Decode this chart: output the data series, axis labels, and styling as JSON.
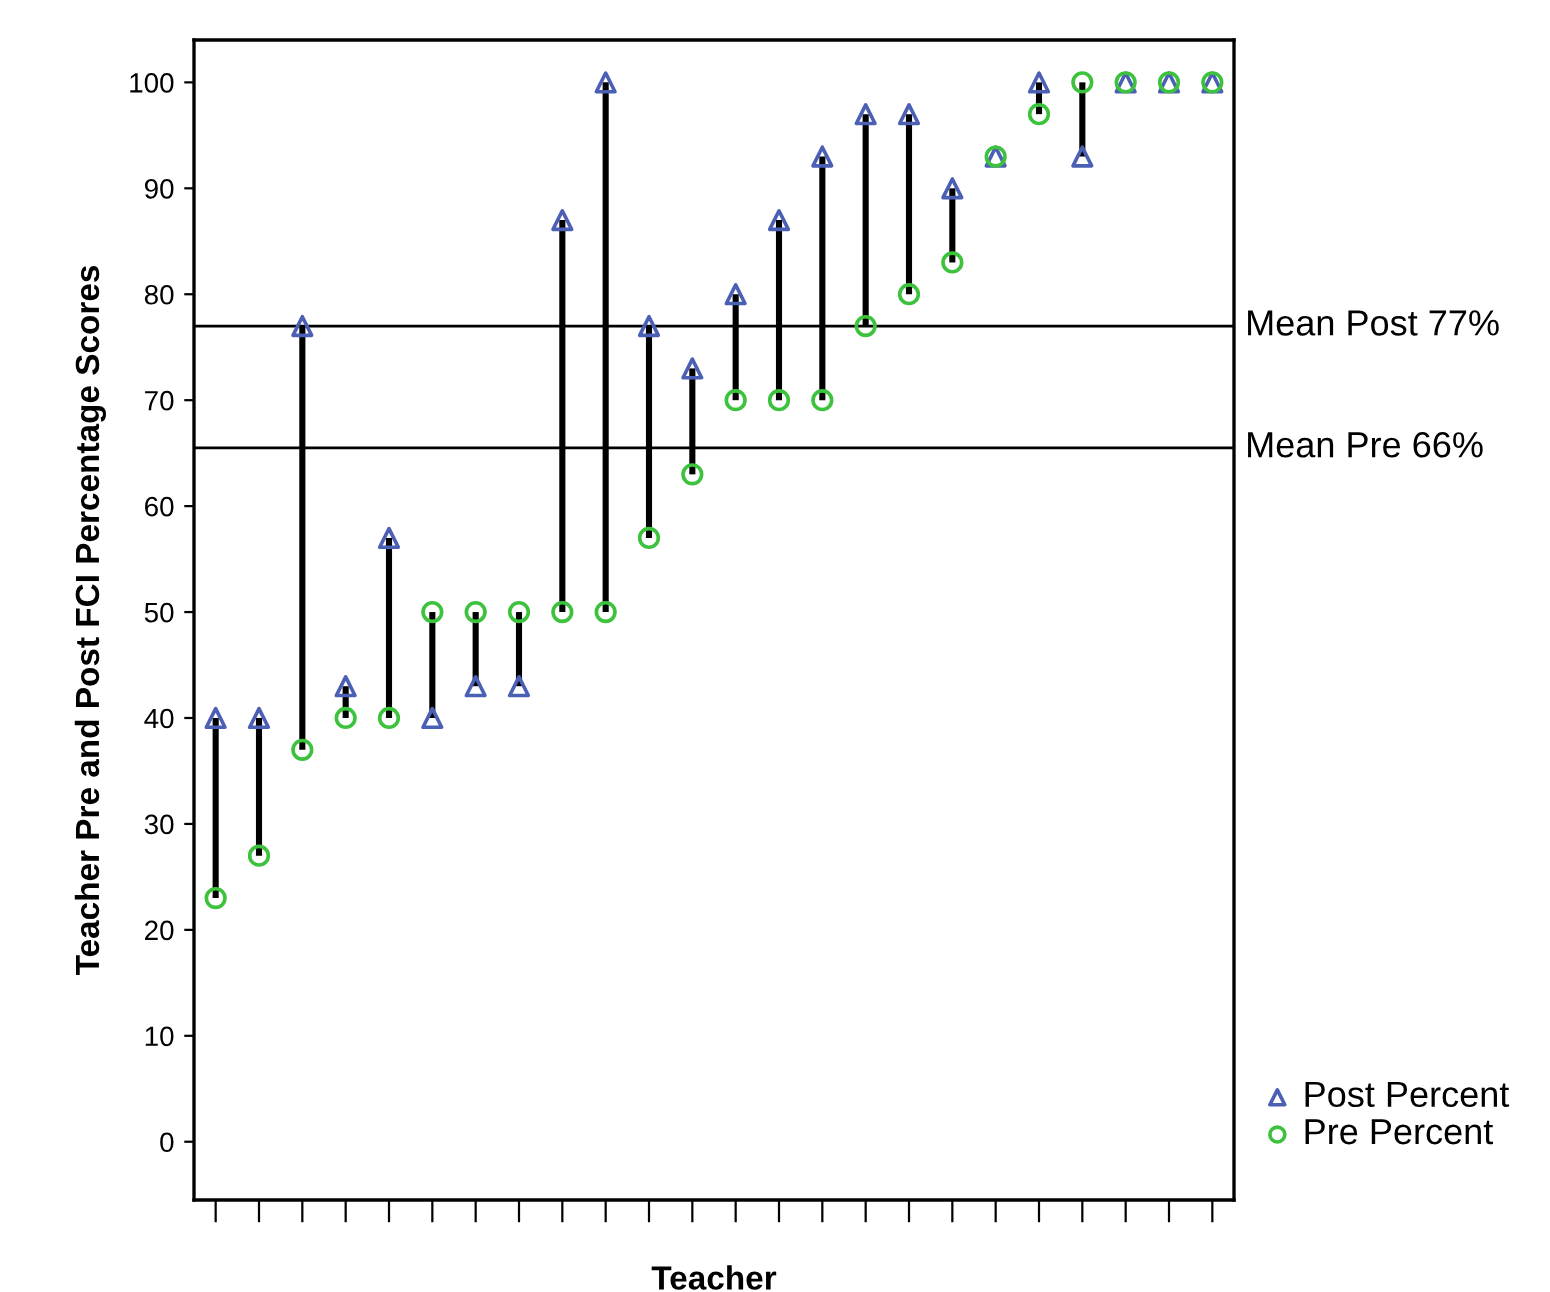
{
  "chart_data": {
    "type": "scatter",
    "xlabel": "Teacher",
    "ylabel": "Teacher Pre and Post FCI Percentage Scores",
    "categories": [
      null,
      null,
      null,
      null,
      null,
      null,
      null,
      null,
      null,
      null,
      null,
      null,
      null,
      null,
      null,
      null,
      null,
      null,
      null,
      null,
      null,
      null,
      null,
      null
    ],
    "series": [
      {
        "name": "Post Percent",
        "color": "#4b5fb4",
        "marker": "triangle",
        "values": [
          40,
          40,
          77,
          43,
          57,
          40,
          43,
          43,
          87,
          100,
          77,
          73,
          80,
          87,
          93,
          97,
          97,
          90,
          93,
          100,
          93,
          100,
          100,
          100
        ]
      },
      {
        "name": "Pre Percent",
        "color": "#3cc23c",
        "marker": "circle",
        "values": [
          23,
          27,
          37,
          40,
          40,
          50,
          50,
          50,
          50,
          50,
          57,
          63,
          70,
          70,
          70,
          77,
          80,
          83,
          93,
          97,
          100,
          100,
          100,
          100
        ]
      }
    ],
    "ylim": [
      -5.5,
      104
    ],
    "yticks": [
      0,
      10,
      20,
      30,
      40,
      50,
      60,
      70,
      80,
      90,
      100
    ],
    "ref_lines": [
      {
        "axis": "y",
        "value": 77,
        "label": "Mean Post 77%",
        "color": "#000000"
      },
      {
        "axis": "y",
        "value": 65.5,
        "label": "Mean Pre 66%",
        "color": "#000000"
      }
    ],
    "grid": false,
    "legend": "bottom right"
  }
}
